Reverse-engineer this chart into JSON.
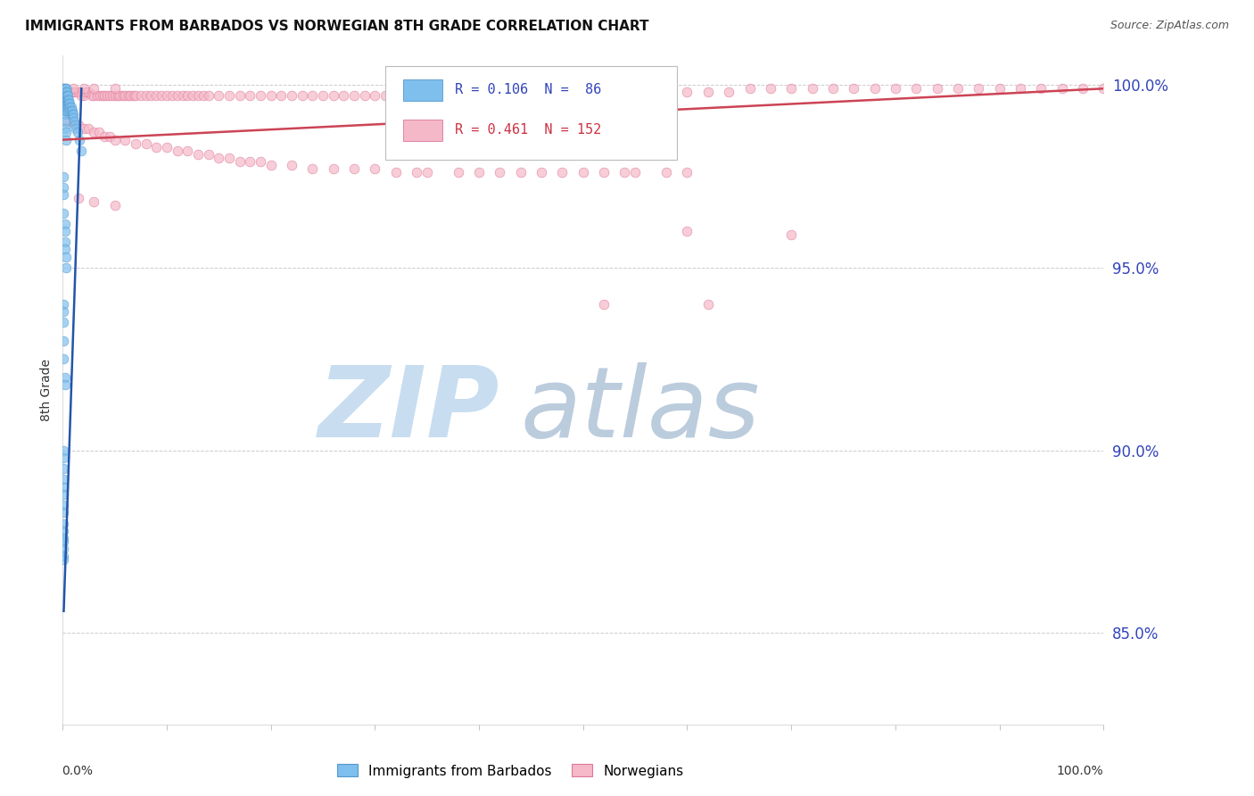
{
  "title": "IMMIGRANTS FROM BARBADOS VS NORWEGIAN 8TH GRADE CORRELATION CHART",
  "source": "Source: ZipAtlas.com",
  "ylabel": "8th Grade",
  "xlim": [
    0.0,
    1.0
  ],
  "ylim": [
    0.825,
    1.008
  ],
  "yticks": [
    0.85,
    0.9,
    0.95,
    1.0
  ],
  "ytick_labels": [
    "85.0%",
    "90.0%",
    "95.0%",
    "100.0%"
  ],
  "legend_blue_label": "R = 0.106  N =  86",
  "legend_pink_label": "R = 0.461  N = 152",
  "blue_scatter_x": [
    0.001,
    0.001,
    0.001,
    0.002,
    0.002,
    0.002,
    0.002,
    0.002,
    0.002,
    0.002,
    0.002,
    0.002,
    0.002,
    0.002,
    0.002,
    0.003,
    0.003,
    0.003,
    0.003,
    0.003,
    0.003,
    0.003,
    0.003,
    0.004,
    0.004,
    0.004,
    0.004,
    0.004,
    0.005,
    0.005,
    0.005,
    0.005,
    0.006,
    0.006,
    0.006,
    0.007,
    0.007,
    0.007,
    0.008,
    0.008,
    0.009,
    0.009,
    0.01,
    0.01,
    0.011,
    0.012,
    0.013,
    0.014,
    0.016,
    0.018,
    0.002,
    0.002,
    0.003,
    0.003,
    0.001,
    0.001,
    0.001,
    0.001,
    0.002,
    0.002,
    0.002,
    0.002,
    0.003,
    0.003,
    0.001,
    0.001,
    0.001,
    0.001,
    0.001,
    0.002,
    0.002,
    0.001,
    0.001,
    0.001,
    0.001,
    0.001,
    0.001,
    0.001,
    0.001,
    0.001,
    0.001,
    0.001,
    0.001,
    0.001,
    0.001,
    0.001
  ],
  "blue_scatter_y": [
    0.999,
    0.999,
    0.999,
    0.999,
    0.998,
    0.998,
    0.997,
    0.997,
    0.996,
    0.996,
    0.995,
    0.994,
    0.993,
    0.993,
    0.992,
    0.999,
    0.999,
    0.998,
    0.997,
    0.996,
    0.995,
    0.994,
    0.993,
    0.998,
    0.997,
    0.996,
    0.995,
    0.994,
    0.997,
    0.996,
    0.995,
    0.993,
    0.996,
    0.995,
    0.994,
    0.995,
    0.994,
    0.993,
    0.994,
    0.993,
    0.993,
    0.992,
    0.992,
    0.991,
    0.99,
    0.989,
    0.988,
    0.987,
    0.985,
    0.982,
    0.99,
    0.988,
    0.987,
    0.985,
    0.975,
    0.972,
    0.97,
    0.965,
    0.962,
    0.96,
    0.957,
    0.955,
    0.953,
    0.95,
    0.94,
    0.938,
    0.935,
    0.93,
    0.925,
    0.92,
    0.918,
    0.9,
    0.898,
    0.895,
    0.892,
    0.89,
    0.888,
    0.885,
    0.883,
    0.88,
    0.878,
    0.876,
    0.875,
    0.873,
    0.871,
    0.87
  ],
  "pink_scatter_x": [
    0.005,
    0.008,
    0.01,
    0.012,
    0.015,
    0.018,
    0.02,
    0.022,
    0.025,
    0.028,
    0.03,
    0.033,
    0.036,
    0.038,
    0.04,
    0.043,
    0.045,
    0.048,
    0.05,
    0.053,
    0.055,
    0.058,
    0.06,
    0.063,
    0.065,
    0.068,
    0.07,
    0.075,
    0.08,
    0.085,
    0.09,
    0.095,
    0.1,
    0.105,
    0.11,
    0.115,
    0.12,
    0.125,
    0.13,
    0.135,
    0.14,
    0.15,
    0.16,
    0.17,
    0.18,
    0.19,
    0.2,
    0.21,
    0.22,
    0.23,
    0.24,
    0.25,
    0.26,
    0.27,
    0.28,
    0.29,
    0.3,
    0.31,
    0.32,
    0.33,
    0.34,
    0.35,
    0.36,
    0.38,
    0.4,
    0.42,
    0.44,
    0.46,
    0.48,
    0.5,
    0.52,
    0.54,
    0.56,
    0.58,
    0.6,
    0.62,
    0.64,
    0.66,
    0.68,
    0.7,
    0.72,
    0.74,
    0.76,
    0.78,
    0.8,
    0.82,
    0.84,
    0.86,
    0.88,
    0.9,
    0.92,
    0.94,
    0.96,
    0.98,
    1.0,
    0.6,
    0.7,
    0.005,
    0.01,
    0.015,
    0.02,
    0.025,
    0.03,
    0.035,
    0.04,
    0.045,
    0.05,
    0.06,
    0.07,
    0.08,
    0.09,
    0.1,
    0.11,
    0.12,
    0.13,
    0.14,
    0.15,
    0.16,
    0.17,
    0.18,
    0.19,
    0.2,
    0.22,
    0.24,
    0.26,
    0.28,
    0.3,
    0.32,
    0.34,
    0.35,
    0.38,
    0.4,
    0.42,
    0.44,
    0.46,
    0.48,
    0.5,
    0.52,
    0.54,
    0.55,
    0.58,
    0.6,
    0.01,
    0.02,
    0.03,
    0.05,
    0.52,
    0.62,
    0.015,
    0.03,
    0.05
  ],
  "pink_scatter_y": [
    0.998,
    0.998,
    0.998,
    0.998,
    0.998,
    0.997,
    0.997,
    0.998,
    0.998,
    0.997,
    0.997,
    0.997,
    0.997,
    0.997,
    0.997,
    0.997,
    0.997,
    0.997,
    0.997,
    0.997,
    0.997,
    0.997,
    0.997,
    0.997,
    0.997,
    0.997,
    0.997,
    0.997,
    0.997,
    0.997,
    0.997,
    0.997,
    0.997,
    0.997,
    0.997,
    0.997,
    0.997,
    0.997,
    0.997,
    0.997,
    0.997,
    0.997,
    0.997,
    0.997,
    0.997,
    0.997,
    0.997,
    0.997,
    0.997,
    0.997,
    0.997,
    0.997,
    0.997,
    0.997,
    0.997,
    0.997,
    0.997,
    0.997,
    0.997,
    0.997,
    0.997,
    0.998,
    0.998,
    0.998,
    0.998,
    0.998,
    0.998,
    0.998,
    0.998,
    0.998,
    0.998,
    0.998,
    0.998,
    0.998,
    0.998,
    0.998,
    0.998,
    0.999,
    0.999,
    0.999,
    0.999,
    0.999,
    0.999,
    0.999,
    0.999,
    0.999,
    0.999,
    0.999,
    0.999,
    0.999,
    0.999,
    0.999,
    0.999,
    0.999,
    0.999,
    0.96,
    0.959,
    0.99,
    0.99,
    0.989,
    0.988,
    0.988,
    0.987,
    0.987,
    0.986,
    0.986,
    0.985,
    0.985,
    0.984,
    0.984,
    0.983,
    0.983,
    0.982,
    0.982,
    0.981,
    0.981,
    0.98,
    0.98,
    0.979,
    0.979,
    0.979,
    0.978,
    0.978,
    0.977,
    0.977,
    0.977,
    0.977,
    0.976,
    0.976,
    0.976,
    0.976,
    0.976,
    0.976,
    0.976,
    0.976,
    0.976,
    0.976,
    0.976,
    0.976,
    0.976,
    0.976,
    0.976,
    0.999,
    0.999,
    0.999,
    0.999,
    0.94,
    0.94,
    0.969,
    0.968,
    0.967
  ],
  "blue_line_x": [
    0.001,
    0.018
  ],
  "blue_line_y": [
    0.856,
    0.999
  ],
  "pink_line_x": [
    0.0,
    1.0
  ],
  "pink_line_y": [
    0.985,
    0.999
  ],
  "scatter_size": 60,
  "blue_color": "#7fbfee",
  "blue_edge": "#5599cc",
  "pink_color": "#f5b8c8",
  "pink_edge": "#dd7799",
  "blue_line_color": "#2255aa",
  "pink_line_color": "#cc4455",
  "background_color": "#ffffff",
  "grid_color": "#cccccc",
  "watermark_zip_color": "#c8ddf0",
  "watermark_atlas_color": "#bbccdd",
  "title_fontsize": 11,
  "source_fontsize": 9,
  "axis_label_color": "#3344bb"
}
